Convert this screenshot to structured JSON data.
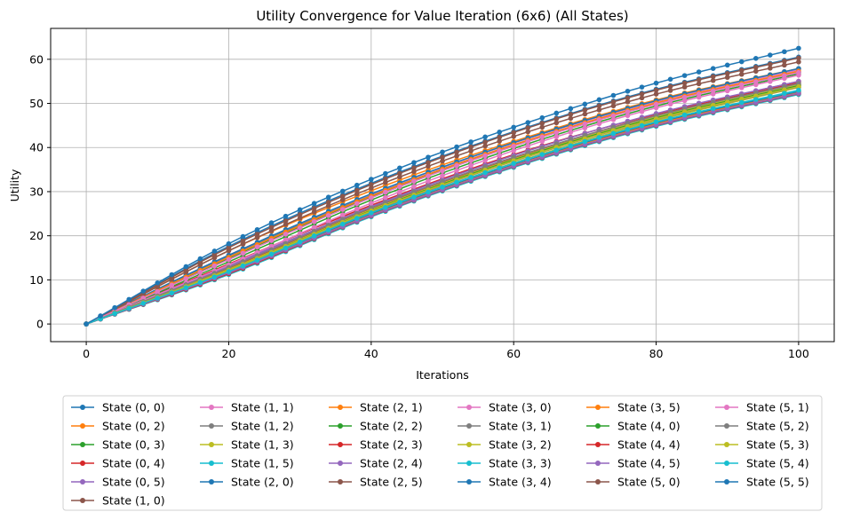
{
  "chart_data": {
    "type": "line",
    "title": "Utility Convergence for Value Iteration (6x6) (All States)",
    "xlabel": "Iterations",
    "ylabel": "Utility",
    "xlim": [
      -5,
      105
    ],
    "ylim": [
      -4,
      67
    ],
    "xticks": [
      0,
      20,
      40,
      60,
      80,
      100
    ],
    "yticks": [
      0,
      10,
      20,
      30,
      40,
      50,
      60
    ],
    "grid": true,
    "legend_placement": "bottom-center",
    "legend_columns": 6,
    "iterations": {
      "start": 0,
      "end": 100,
      "step": 2
    },
    "curve_model": "values at iteration 0, 20, 40, 60, 80, 100 read from the plot",
    "series": [
      {
        "name": "State (0, 0)",
        "color": "#1f77b4",
        "values": [
          0,
          17.6,
          31.9,
          43.6,
          53.2,
          60.5
        ]
      },
      {
        "name": "State (0, 2)",
        "color": "#ff7f0e",
        "values": [
          0,
          16.6,
          30.2,
          41.4,
          50.8,
          57.9
        ]
      },
      {
        "name": "State (0, 3)",
        "color": "#2ca02c",
        "values": [
          0,
          14.8,
          28.8,
          40.4,
          49.9,
          57.1
        ]
      },
      {
        "name": "State (0, 4)",
        "color": "#d62728",
        "values": [
          0,
          13.6,
          26.9,
          38.4,
          47.6,
          55.0
        ]
      },
      {
        "name": "State (0, 5)",
        "color": "#9467bd",
        "values": [
          0,
          13.3,
          26.4,
          37.6,
          46.8,
          54.1
        ]
      },
      {
        "name": "State (1, 0)",
        "color": "#8c564b",
        "values": [
          0,
          17.3,
          31.6,
          43.4,
          53.0,
          60.3
        ]
      },
      {
        "name": "State (1, 1)",
        "color": "#e377c2",
        "values": [
          0,
          15.6,
          29.4,
          41.0,
          50.4,
          57.6
        ]
      },
      {
        "name": "State (1, 2)",
        "color": "#7f7f7f",
        "values": [
          0,
          15.4,
          29.1,
          40.6,
          50.0,
          57.1
        ]
      },
      {
        "name": "State (1, 3)",
        "color": "#bcbd22",
        "values": [
          0,
          11.8,
          25.1,
          36.5,
          46.1,
          53.6
        ]
      },
      {
        "name": "State (1, 5)",
        "color": "#17becf",
        "values": [
          0,
          11.5,
          24.6,
          36.0,
          45.6,
          52.8
        ]
      },
      {
        "name": "State (2, 0)",
        "color": "#1f77b4",
        "values": [
          0,
          15.6,
          29.5,
          41.1,
          50.6,
          57.9
        ]
      },
      {
        "name": "State (2, 1)",
        "color": "#ff7f0e",
        "values": [
          0,
          15.1,
          29.0,
          40.6,
          50.1,
          57.3
        ]
      },
      {
        "name": "State (2, 2)",
        "color": "#2ca02c",
        "values": [
          0,
          14.1,
          28.1,
          39.8,
          49.4,
          56.7
        ]
      },
      {
        "name": "State (2, 3)",
        "color": "#d62728",
        "values": [
          0,
          12.6,
          26.2,
          37.7,
          47.3,
          54.7
        ]
      },
      {
        "name": "State (2, 4)",
        "color": "#9467bd",
        "values": [
          0,
          13.0,
          26.6,
          38.2,
          47.7,
          55.0
        ]
      },
      {
        "name": "State (2, 5)",
        "color": "#8c564b",
        "values": [
          0,
          12.1,
          25.6,
          37.3,
          46.9,
          54.2
        ]
      },
      {
        "name": "State (3, 0)",
        "color": "#e377c2",
        "values": [
          0,
          13.4,
          27.4,
          39.3,
          49.0,
          56.4
        ]
      },
      {
        "name": "State (3, 1)",
        "color": "#7f7f7f",
        "values": [
          0,
          12.0,
          25.4,
          36.9,
          46.4,
          53.7
        ]
      },
      {
        "name": "State (3, 2)",
        "color": "#bcbd22",
        "values": [
          0,
          12.4,
          25.9,
          37.4,
          46.9,
          54.2
        ]
      },
      {
        "name": "State (3, 3)",
        "color": "#17becf",
        "values": [
          0,
          11.2,
          24.3,
          35.5,
          44.8,
          52.0
        ]
      },
      {
        "name": "State (3, 4)",
        "color": "#1f77b4",
        "values": [
          0,
          11.8,
          24.9,
          36.1,
          45.5,
          52.6
        ]
      },
      {
        "name": "State (3, 5)",
        "color": "#ff7f0e",
        "values": [
          0,
          11.6,
          24.7,
          35.9,
          45.3,
          52.4
        ]
      },
      {
        "name": "State (4, 0)",
        "color": "#2ca02c",
        "values": [
          0,
          12.2,
          25.7,
          37.2,
          46.7,
          54.0
        ]
      },
      {
        "name": "State (4, 4)",
        "color": "#d62728",
        "values": [
          0,
          11.4,
          24.5,
          35.7,
          45.0,
          52.2
        ]
      },
      {
        "name": "State (4, 5)",
        "color": "#9467bd",
        "values": [
          0,
          11.6,
          24.6,
          35.8,
          45.1,
          52.3
        ]
      },
      {
        "name": "State (5, 0)",
        "color": "#8c564b",
        "values": [
          0,
          16.6,
          30.8,
          42.5,
          52.1,
          59.4
        ]
      },
      {
        "name": "State (5, 1)",
        "color": "#e377c2",
        "values": [
          0,
          14.6,
          28.6,
          40.3,
          49.8,
          57.0
        ]
      },
      {
        "name": "State (5, 2)",
        "color": "#7f7f7f",
        "values": [
          0,
          12.8,
          26.3,
          37.8,
          47.2,
          54.5
        ]
      },
      {
        "name": "State (5, 3)",
        "color": "#bcbd22",
        "values": [
          0,
          12.2,
          25.6,
          37.0,
          46.5,
          53.8
        ]
      },
      {
        "name": "State (5, 4)",
        "color": "#17becf",
        "values": [
          0,
          11.9,
          25.2,
          36.4,
          45.8,
          53.0
        ]
      },
      {
        "name": "State (5, 5)",
        "color": "#1f77b4",
        "values": [
          0,
          18.2,
          32.8,
          44.6,
          54.6,
          62.5
        ]
      }
    ]
  }
}
